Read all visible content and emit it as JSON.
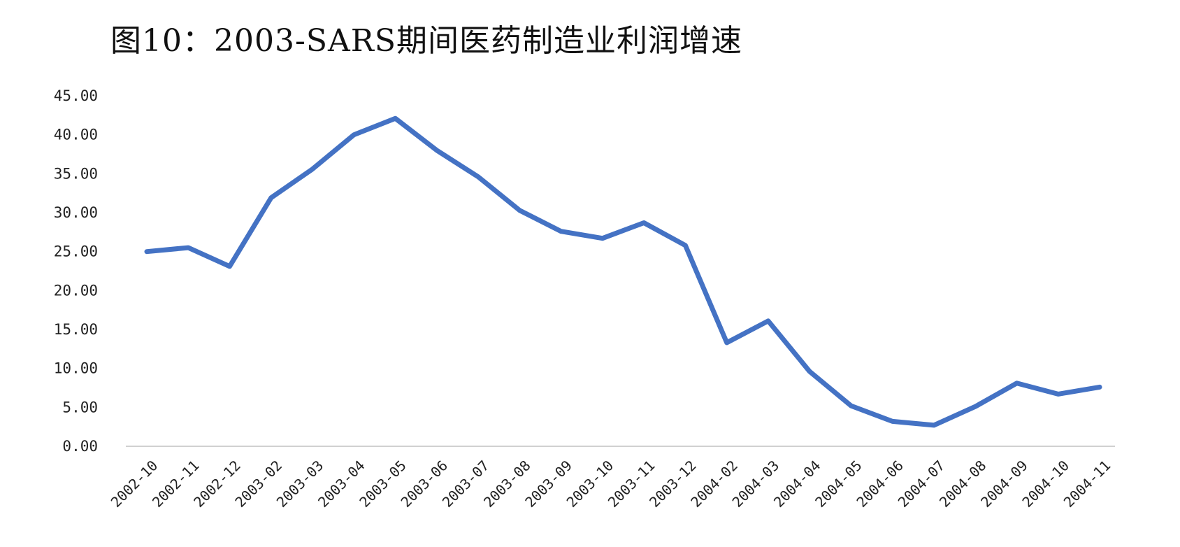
{
  "chart_data": {
    "type": "line",
    "title": "图10：2003-SARS期间医药制造业利润增速",
    "xlabel": "",
    "ylabel": "",
    "ylim": [
      0,
      45
    ],
    "y_ticks": [
      "0.00",
      "5.00",
      "10.00",
      "15.00",
      "20.00",
      "25.00",
      "30.00",
      "35.00",
      "40.00",
      "45.00"
    ],
    "grid": false,
    "legend": "none",
    "line_color": "#4472C4",
    "categories": [
      "2002-10",
      "2002-11",
      "2002-12",
      "2003-02",
      "2003-03",
      "2003-04",
      "2003-05",
      "2003-06",
      "2003-07",
      "2003-08",
      "2003-09",
      "2003-10",
      "2003-11",
      "2003-12",
      "2004-02",
      "2004-03",
      "2004-04",
      "2004-05",
      "2004-06",
      "2004-07",
      "2004-08",
      "2004-09",
      "2004-10",
      "2004-11"
    ],
    "series": [
      {
        "values": [
          25.0,
          25.5,
          23.1,
          31.9,
          35.6,
          40.0,
          42.1,
          38.0,
          34.6,
          30.3,
          27.6,
          26.7,
          28.7,
          25.8,
          13.3,
          16.1,
          9.6,
          5.2,
          3.2,
          2.7,
          5.1,
          8.1,
          6.7,
          7.6
        ]
      }
    ]
  }
}
